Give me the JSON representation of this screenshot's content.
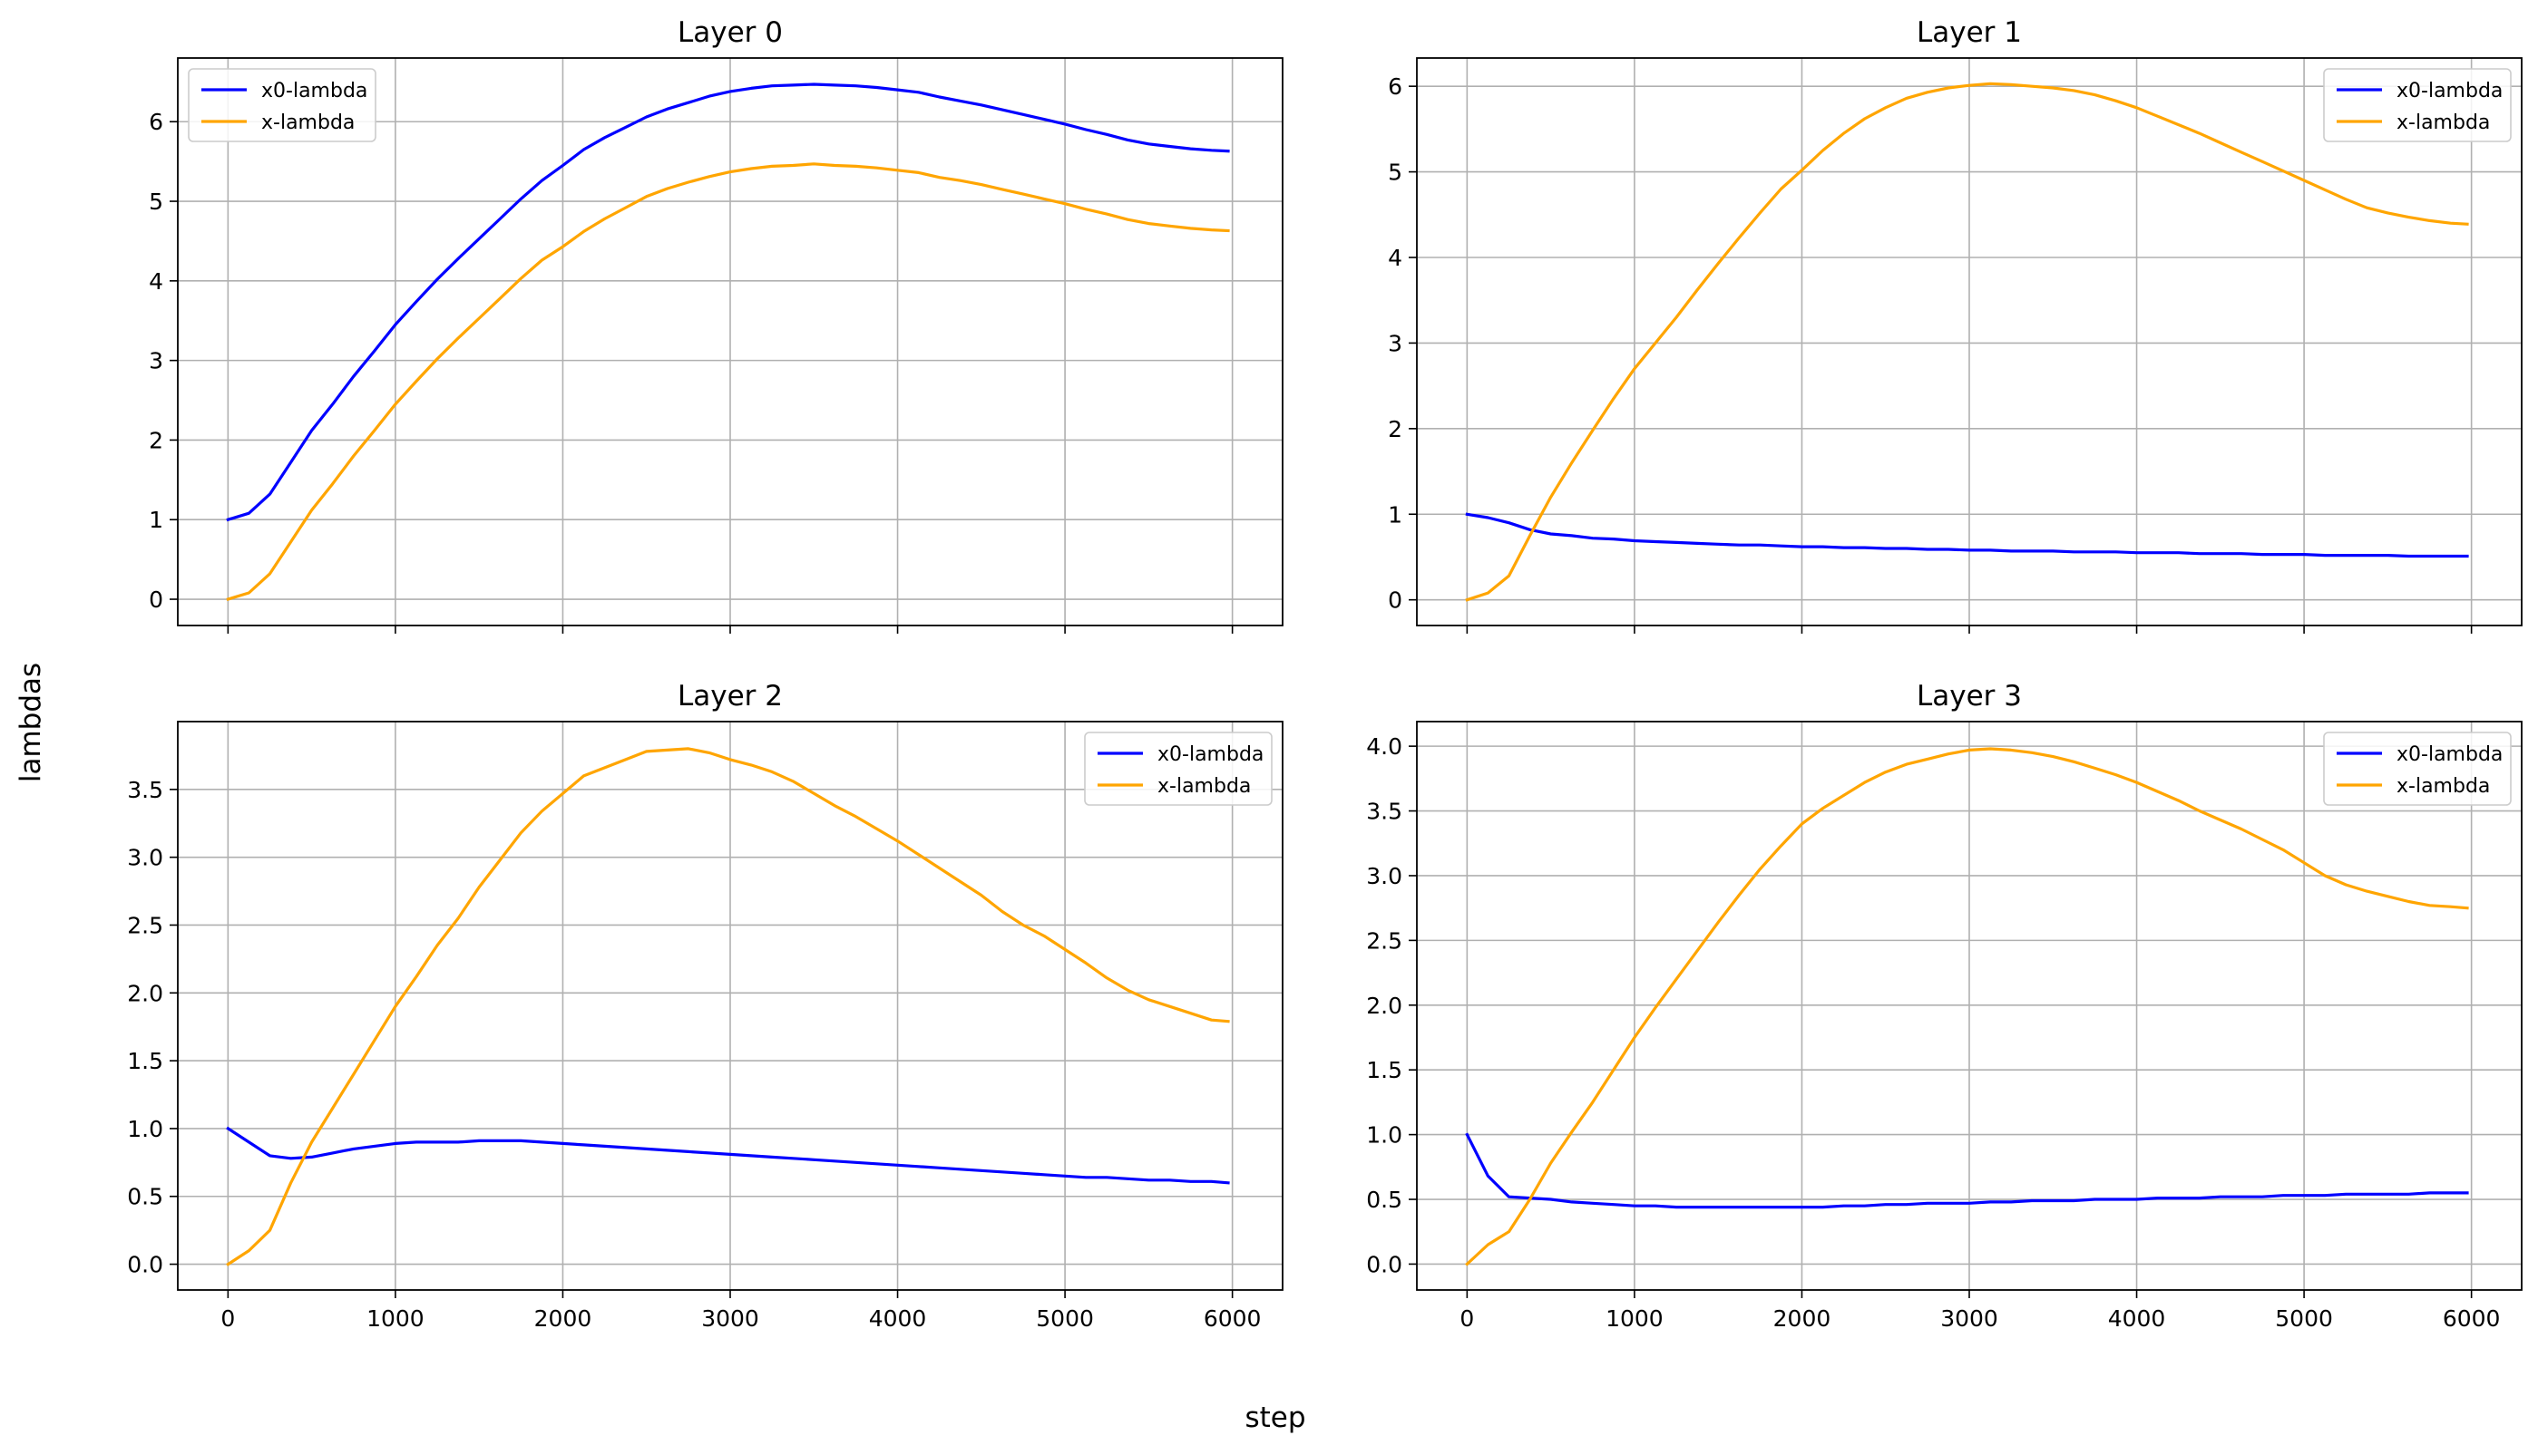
{
  "figure": {
    "xlabel": "step",
    "ylabel": "lambdas"
  },
  "colors": {
    "x0-lambda": "#0000ff",
    "x-lambda": "#ffa500",
    "grid": "#b0b0b0",
    "axes": "#000000"
  },
  "chart_data": [
    {
      "type": "line",
      "title": "Layer 0",
      "xlabel": "",
      "ylabel": "",
      "xlim": [
        -300,
        6300
      ],
      "ylim": [
        -0.33,
        6.8
      ],
      "xticks": [
        0,
        1000,
        2000,
        3000,
        4000,
        5000,
        6000
      ],
      "xtick_labels_visible": false,
      "yticks": [
        0,
        1,
        2,
        3,
        4,
        5,
        6
      ],
      "ytick_labels": [
        "0",
        "1",
        "2",
        "3",
        "4",
        "5",
        "6"
      ],
      "grid": true,
      "legend": "top-left",
      "x": [
        0,
        125,
        250,
        375,
        500,
        625,
        750,
        875,
        1000,
        1125,
        1250,
        1375,
        1500,
        1625,
        1750,
        1875,
        2000,
        2125,
        2250,
        2375,
        2500,
        2625,
        2750,
        2875,
        3000,
        3125,
        3250,
        3375,
        3500,
        3625,
        3750,
        3875,
        4000,
        4125,
        4250,
        4375,
        4500,
        4625,
        4750,
        4875,
        5000,
        5125,
        5250,
        5375,
        5500,
        5625,
        5750,
        5875,
        5975
      ],
      "series": [
        {
          "name": "x0-lambda",
          "values": [
            1.0,
            1.08,
            1.32,
            1.72,
            2.12,
            2.45,
            2.8,
            3.12,
            3.45,
            3.74,
            4.02,
            4.28,
            4.53,
            4.78,
            5.03,
            5.26,
            5.45,
            5.65,
            5.8,
            5.93,
            6.06,
            6.16,
            6.24,
            6.32,
            6.38,
            6.42,
            6.45,
            6.46,
            6.47,
            6.46,
            6.45,
            6.43,
            6.4,
            6.37,
            6.31,
            6.26,
            6.21,
            6.15,
            6.09,
            6.03,
            5.97,
            5.9,
            5.84,
            5.77,
            5.72,
            5.69,
            5.66,
            5.64,
            5.63
          ]
        },
        {
          "name": "x-lambda",
          "values": [
            0.0,
            0.08,
            0.32,
            0.72,
            1.12,
            1.45,
            1.8,
            2.12,
            2.45,
            2.74,
            3.02,
            3.28,
            3.53,
            3.78,
            4.03,
            4.26,
            4.43,
            4.62,
            4.78,
            4.92,
            5.06,
            5.16,
            5.24,
            5.31,
            5.37,
            5.41,
            5.44,
            5.45,
            5.47,
            5.45,
            5.44,
            5.42,
            5.39,
            5.36,
            5.3,
            5.26,
            5.21,
            5.15,
            5.09,
            5.03,
            4.97,
            4.9,
            4.84,
            4.77,
            4.72,
            4.69,
            4.66,
            4.64,
            4.63
          ]
        }
      ]
    },
    {
      "type": "line",
      "title": "Layer 1",
      "xlabel": "",
      "ylabel": "",
      "xlim": [
        -300,
        6300
      ],
      "ylim": [
        -0.3,
        6.33
      ],
      "xticks": [
        0,
        1000,
        2000,
        3000,
        4000,
        5000,
        6000
      ],
      "xtick_labels_visible": false,
      "yticks": [
        0,
        1,
        2,
        3,
        4,
        5,
        6
      ],
      "ytick_labels": [
        "0",
        "1",
        "2",
        "3",
        "4",
        "5",
        "6"
      ],
      "grid": true,
      "legend": "top-right",
      "x": [
        0,
        125,
        250,
        375,
        500,
        625,
        750,
        875,
        1000,
        1125,
        1250,
        1375,
        1500,
        1625,
        1750,
        1875,
        2000,
        2125,
        2250,
        2375,
        2500,
        2625,
        2750,
        2875,
        3000,
        3125,
        3250,
        3375,
        3500,
        3625,
        3750,
        3875,
        4000,
        4125,
        4250,
        4375,
        4500,
        4625,
        4750,
        4875,
        5000,
        5125,
        5250,
        5375,
        5500,
        5625,
        5750,
        5875,
        5975
      ],
      "series": [
        {
          "name": "x0-lambda",
          "values": [
            1.0,
            0.96,
            0.9,
            0.82,
            0.77,
            0.75,
            0.72,
            0.71,
            0.69,
            0.68,
            0.67,
            0.66,
            0.65,
            0.64,
            0.64,
            0.63,
            0.62,
            0.62,
            0.61,
            0.61,
            0.6,
            0.6,
            0.59,
            0.59,
            0.58,
            0.58,
            0.57,
            0.57,
            0.57,
            0.56,
            0.56,
            0.56,
            0.55,
            0.55,
            0.55,
            0.54,
            0.54,
            0.54,
            0.53,
            0.53,
            0.53,
            0.52,
            0.52,
            0.52,
            0.52,
            0.51,
            0.51,
            0.51,
            0.51
          ]
        },
        {
          "name": "x-lambda",
          "values": [
            0.0,
            0.08,
            0.28,
            0.75,
            1.2,
            1.6,
            1.98,
            2.35,
            2.7,
            3.0,
            3.3,
            3.62,
            3.93,
            4.23,
            4.52,
            4.8,
            5.02,
            5.25,
            5.45,
            5.62,
            5.75,
            5.86,
            5.93,
            5.98,
            6.01,
            6.03,
            6.02,
            6.0,
            5.98,
            5.95,
            5.9,
            5.83,
            5.75,
            5.65,
            5.55,
            5.45,
            5.34,
            5.23,
            5.12,
            5.01,
            4.9,
            4.79,
            4.68,
            4.58,
            4.52,
            4.47,
            4.43,
            4.4,
            4.39
          ]
        }
      ]
    },
    {
      "type": "line",
      "title": "Layer 2",
      "xlabel": "step",
      "ylabel": "",
      "xlim": [
        -300,
        6300
      ],
      "ylim": [
        -0.19,
        4.0
      ],
      "xticks": [
        0,
        1000,
        2000,
        3000,
        4000,
        5000,
        6000
      ],
      "xtick_labels_visible": true,
      "xtick_labels": [
        "0",
        "1000",
        "2000",
        "3000",
        "4000",
        "5000",
        "6000"
      ],
      "yticks": [
        0.0,
        0.5,
        1.0,
        1.5,
        2.0,
        2.5,
        3.0,
        3.5
      ],
      "ytick_labels": [
        "0.0",
        "0.5",
        "1.0",
        "1.5",
        "2.0",
        "2.5",
        "3.0",
        "3.5"
      ],
      "grid": true,
      "legend": "top-right",
      "x": [
        0,
        125,
        250,
        375,
        500,
        625,
        750,
        875,
        1000,
        1125,
        1250,
        1375,
        1500,
        1625,
        1750,
        1875,
        2000,
        2125,
        2250,
        2375,
        2500,
        2625,
        2750,
        2875,
        3000,
        3125,
        3250,
        3375,
        3500,
        3625,
        3750,
        3875,
        4000,
        4125,
        4250,
        4375,
        4500,
        4625,
        4750,
        4875,
        5000,
        5125,
        5250,
        5375,
        5500,
        5625,
        5750,
        5875,
        5975
      ],
      "series": [
        {
          "name": "x0-lambda",
          "values": [
            1.0,
            0.9,
            0.8,
            0.78,
            0.79,
            0.82,
            0.85,
            0.87,
            0.89,
            0.9,
            0.9,
            0.9,
            0.91,
            0.91,
            0.91,
            0.9,
            0.89,
            0.88,
            0.87,
            0.86,
            0.85,
            0.84,
            0.83,
            0.82,
            0.81,
            0.8,
            0.79,
            0.78,
            0.77,
            0.76,
            0.75,
            0.74,
            0.73,
            0.72,
            0.71,
            0.7,
            0.69,
            0.68,
            0.67,
            0.66,
            0.65,
            0.64,
            0.64,
            0.63,
            0.62,
            0.62,
            0.61,
            0.61,
            0.6
          ]
        },
        {
          "name": "x-lambda",
          "values": [
            0.0,
            0.1,
            0.25,
            0.6,
            0.9,
            1.15,
            1.4,
            1.65,
            1.9,
            2.12,
            2.35,
            2.55,
            2.78,
            2.98,
            3.18,
            3.34,
            3.47,
            3.6,
            3.66,
            3.72,
            3.78,
            3.79,
            3.8,
            3.77,
            3.72,
            3.68,
            3.63,
            3.56,
            3.47,
            3.38,
            3.3,
            3.21,
            3.12,
            3.02,
            2.92,
            2.82,
            2.72,
            2.6,
            2.5,
            2.42,
            2.32,
            2.22,
            2.11,
            2.02,
            1.95,
            1.9,
            1.85,
            1.8,
            1.79
          ]
        }
      ]
    },
    {
      "type": "line",
      "title": "Layer 3",
      "xlabel": "step",
      "ylabel": "",
      "xlim": [
        -300,
        6300
      ],
      "ylim": [
        -0.2,
        4.19
      ],
      "xticks": [
        0,
        1000,
        2000,
        3000,
        4000,
        5000,
        6000
      ],
      "xtick_labels_visible": true,
      "xtick_labels": [
        "0",
        "1000",
        "2000",
        "3000",
        "4000",
        "5000",
        "6000"
      ],
      "yticks": [
        0.0,
        0.5,
        1.0,
        1.5,
        2.0,
        2.5,
        3.0,
        3.5,
        4.0
      ],
      "ytick_labels": [
        "0.0",
        "0.5",
        "1.0",
        "1.5",
        "2.0",
        "2.5",
        "3.0",
        "3.5",
        "4.0"
      ],
      "grid": true,
      "legend": "top-right",
      "x": [
        0,
        125,
        250,
        375,
        500,
        625,
        750,
        875,
        1000,
        1125,
        1250,
        1375,
        1500,
        1625,
        1750,
        1875,
        2000,
        2125,
        2250,
        2375,
        2500,
        2625,
        2750,
        2875,
        3000,
        3125,
        3250,
        3375,
        3500,
        3625,
        3750,
        3875,
        4000,
        4125,
        4250,
        4375,
        4500,
        4625,
        4750,
        4875,
        5000,
        5125,
        5250,
        5375,
        5500,
        5625,
        5750,
        5875,
        5975
      ],
      "series": [
        {
          "name": "x0-lambda",
          "values": [
            1.0,
            0.68,
            0.52,
            0.51,
            0.5,
            0.48,
            0.47,
            0.46,
            0.45,
            0.45,
            0.44,
            0.44,
            0.44,
            0.44,
            0.44,
            0.44,
            0.44,
            0.44,
            0.45,
            0.45,
            0.46,
            0.46,
            0.47,
            0.47,
            0.47,
            0.48,
            0.48,
            0.49,
            0.49,
            0.49,
            0.5,
            0.5,
            0.5,
            0.51,
            0.51,
            0.51,
            0.52,
            0.52,
            0.52,
            0.53,
            0.53,
            0.53,
            0.54,
            0.54,
            0.54,
            0.54,
            0.55,
            0.55,
            0.55
          ]
        },
        {
          "name": "x-lambda",
          "values": [
            0.0,
            0.15,
            0.25,
            0.5,
            0.78,
            1.02,
            1.25,
            1.5,
            1.75,
            1.98,
            2.2,
            2.42,
            2.64,
            2.85,
            3.05,
            3.23,
            3.4,
            3.52,
            3.62,
            3.72,
            3.8,
            3.86,
            3.9,
            3.94,
            3.97,
            3.98,
            3.97,
            3.95,
            3.92,
            3.88,
            3.83,
            3.78,
            3.72,
            3.65,
            3.58,
            3.5,
            3.43,
            3.36,
            3.28,
            3.2,
            3.1,
            3.0,
            2.93,
            2.88,
            2.84,
            2.8,
            2.77,
            2.76,
            2.75
          ]
        }
      ]
    }
  ]
}
